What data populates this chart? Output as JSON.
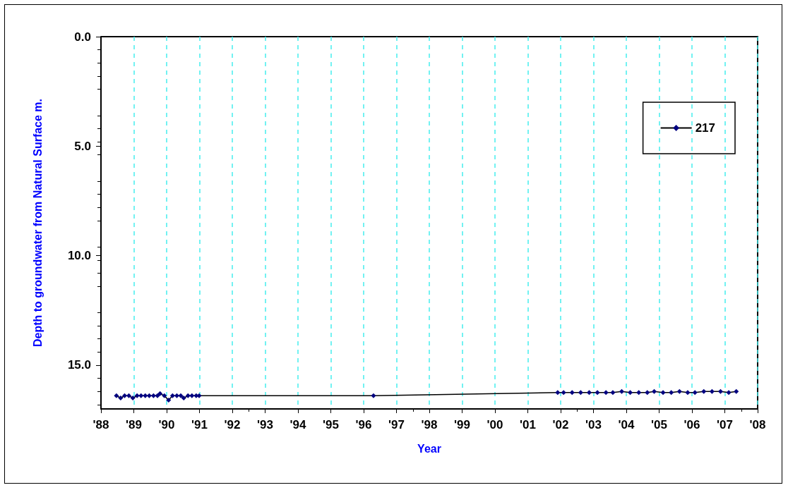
{
  "chart_data": {
    "type": "line",
    "xlabel": "Year",
    "ylabel": "Depth to groundwater from Natural Surface m.",
    "xlim": [
      1988,
      2008
    ],
    "xticks": [
      {
        "value": 1988,
        "label": "'88"
      },
      {
        "value": 1989,
        "label": "'89"
      },
      {
        "value": 1990,
        "label": "'90"
      },
      {
        "value": 1991,
        "label": "'91"
      },
      {
        "value": 1992,
        "label": "'92"
      },
      {
        "value": 1993,
        "label": "'93"
      },
      {
        "value": 1994,
        "label": "'94"
      },
      {
        "value": 1995,
        "label": "'95"
      },
      {
        "value": 1996,
        "label": "'96"
      },
      {
        "value": 1997,
        "label": "'97"
      },
      {
        "value": 1998,
        "label": "'98"
      },
      {
        "value": 1999,
        "label": "'99"
      },
      {
        "value": 2000,
        "label": "'00"
      },
      {
        "value": 2001,
        "label": "'01"
      },
      {
        "value": 2002,
        "label": "'02"
      },
      {
        "value": 2003,
        "label": "'03"
      },
      {
        "value": 2004,
        "label": "'04"
      },
      {
        "value": 2005,
        "label": "'05"
      },
      {
        "value": 2006,
        "label": "'06"
      },
      {
        "value": 2007,
        "label": "'07"
      },
      {
        "value": 2008,
        "label": "'08"
      }
    ],
    "ylim": [
      17,
      0
    ],
    "yticks": [
      {
        "value": 0,
        "label": "0.0"
      },
      {
        "value": 5,
        "label": "5.0"
      },
      {
        "value": 10,
        "label": "10.0"
      },
      {
        "value": 15,
        "label": "15.0"
      }
    ],
    "grid": "x",
    "legend": "top right",
    "marker": "diamond",
    "line_style": "solid",
    "series": [
      {
        "name": "217",
        "color": "#000080",
        "x": [
          1988.47,
          1988.6,
          1988.72,
          1988.85,
          1988.97,
          1989.1,
          1989.22,
          1989.35,
          1989.47,
          1989.6,
          1989.72,
          1989.8,
          1989.93,
          1990.06,
          1990.18,
          1990.31,
          1990.43,
          1990.52,
          1990.65,
          1990.77,
          1990.9,
          1990.99,
          1996.3,
          2001.91,
          2002.09,
          2002.35,
          2002.61,
          2002.87,
          2003.12,
          2003.38,
          2003.59,
          2003.86,
          2004.12,
          2004.38,
          2004.64,
          2004.85,
          2005.12,
          2005.37,
          2005.62,
          2005.87,
          2006.09,
          2006.36,
          2006.61,
          2006.87,
          2007.12,
          2007.35
        ],
        "values": [
          16.4,
          16.5,
          16.4,
          16.4,
          16.5,
          16.4,
          16.4,
          16.4,
          16.4,
          16.4,
          16.4,
          16.3,
          16.4,
          16.6,
          16.4,
          16.4,
          16.4,
          16.5,
          16.4,
          16.4,
          16.4,
          16.4,
          16.4,
          16.25,
          16.25,
          16.25,
          16.25,
          16.25,
          16.25,
          16.25,
          16.25,
          16.2,
          16.25,
          16.25,
          16.25,
          16.2,
          16.25,
          16.25,
          16.2,
          16.25,
          16.25,
          16.2,
          16.2,
          16.2,
          16.25,
          16.2
        ]
      }
    ]
  }
}
